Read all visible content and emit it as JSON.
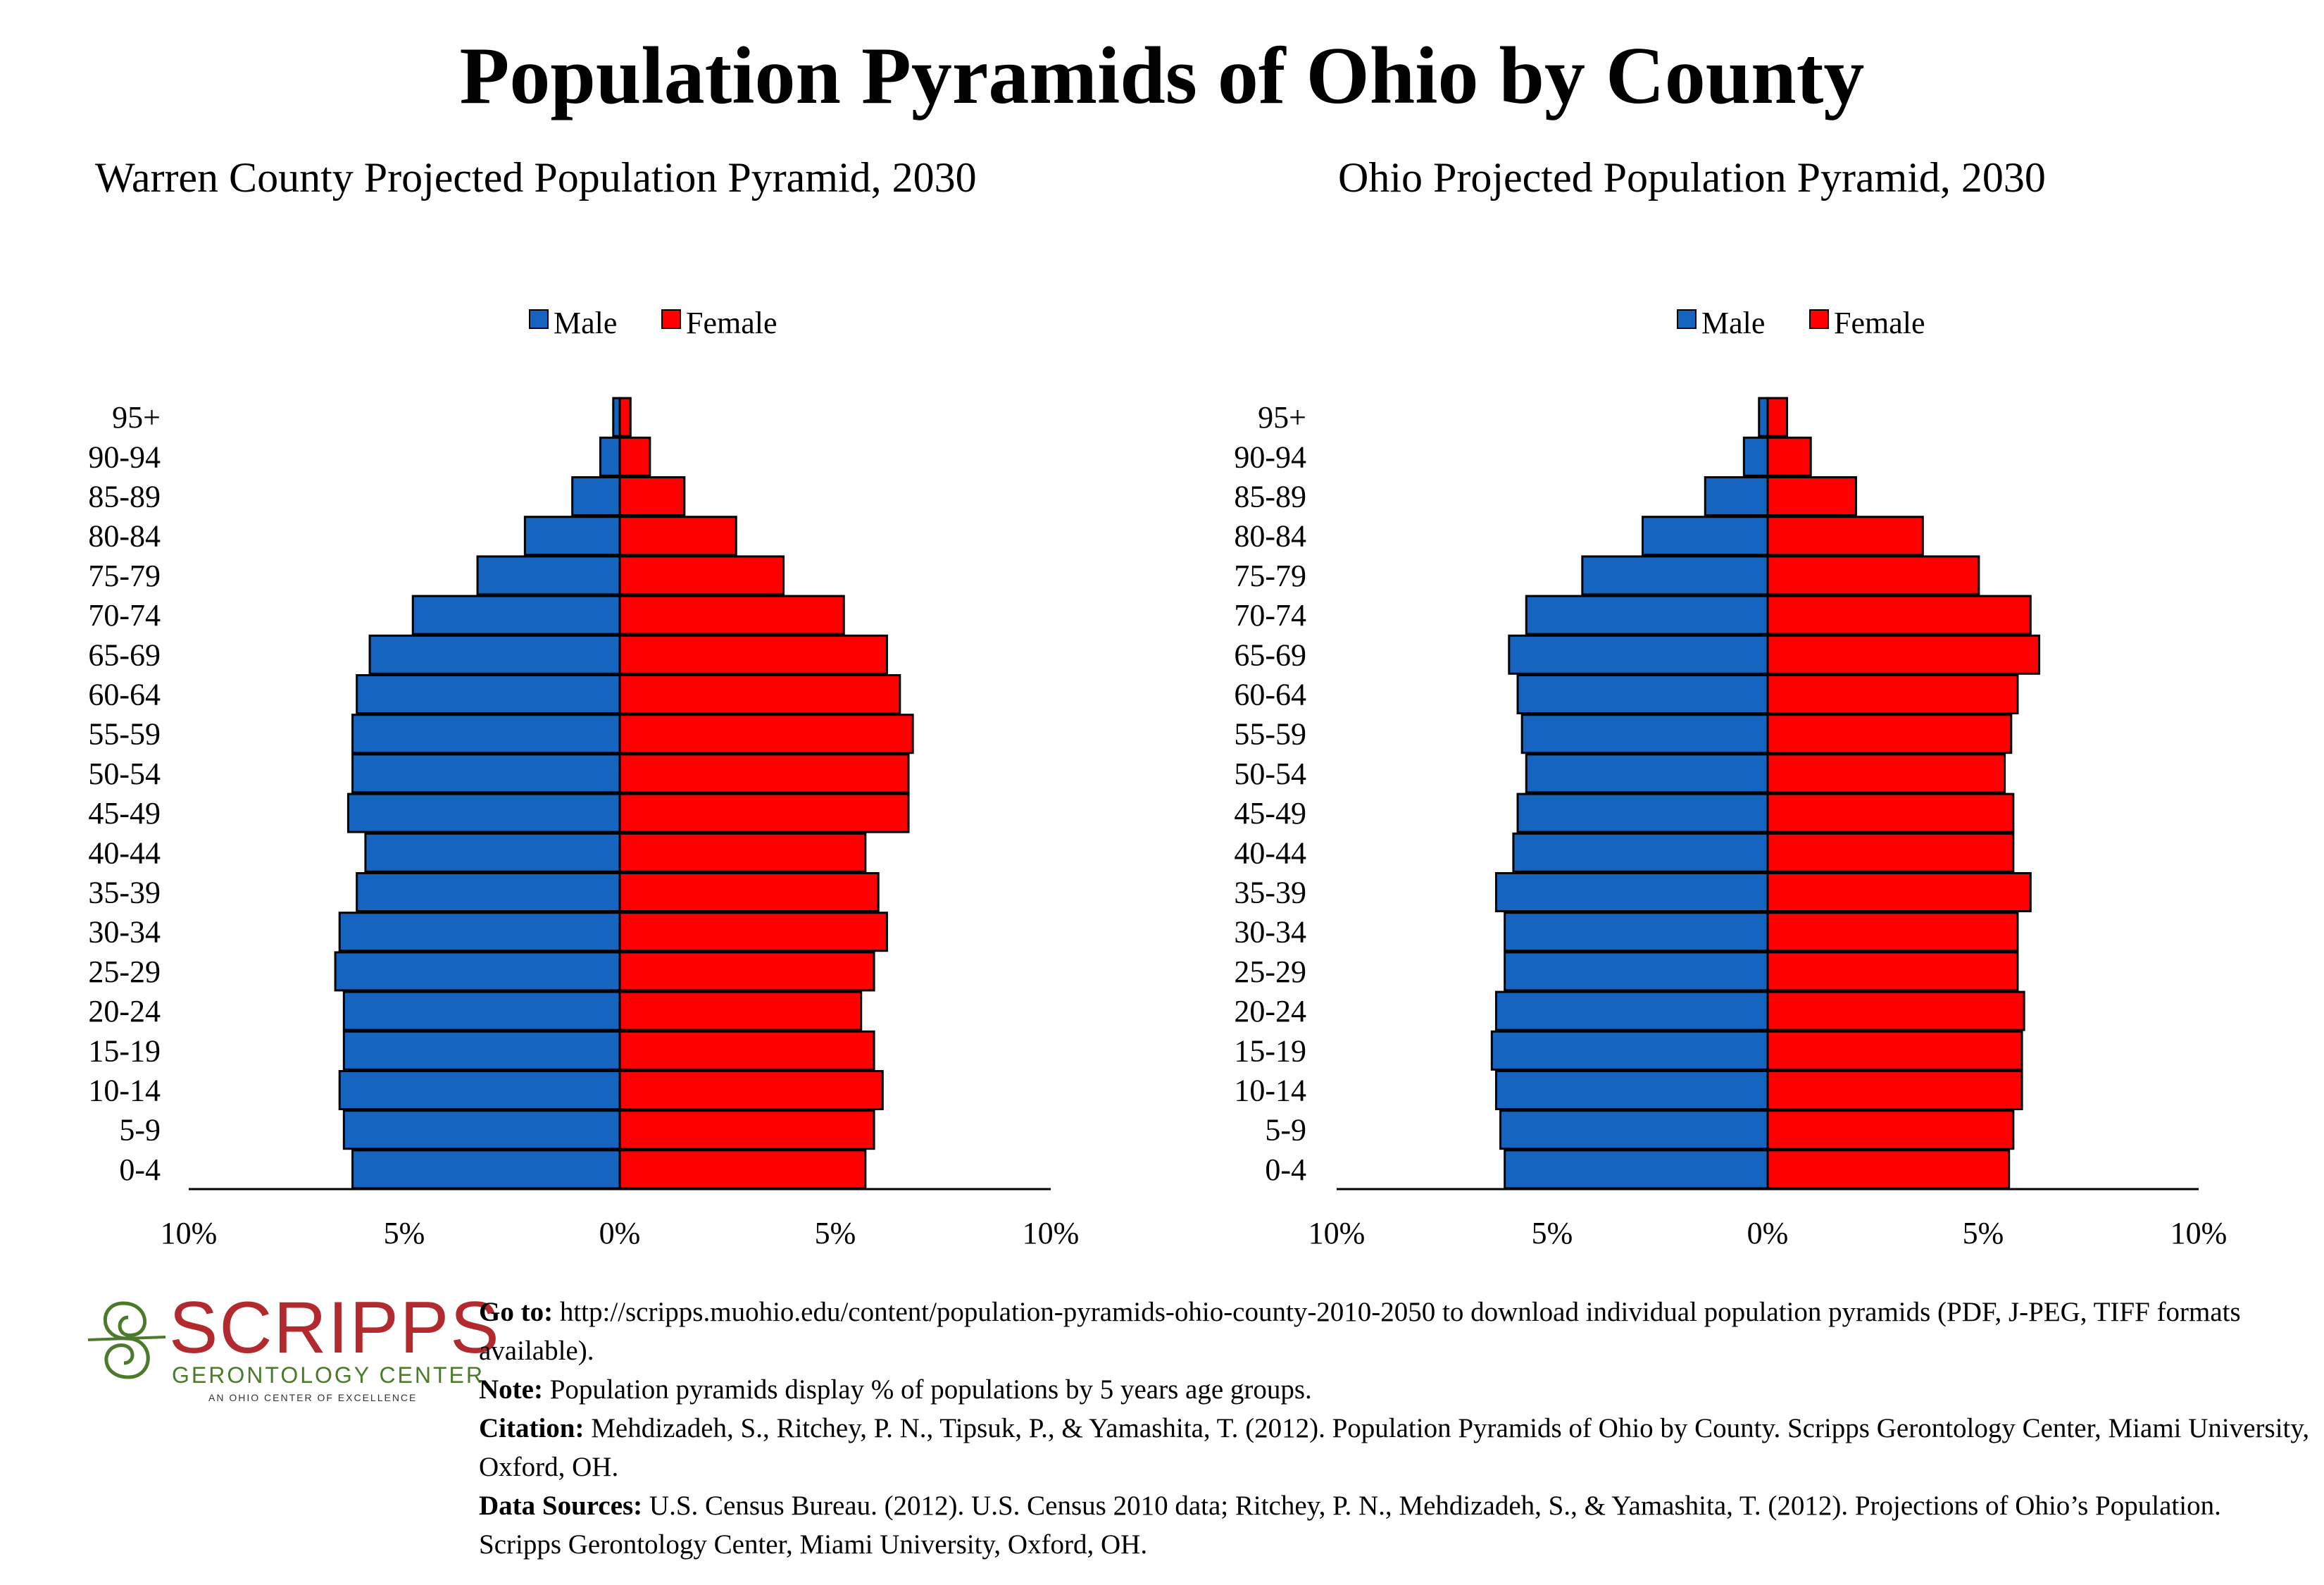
{
  "main_title": "Population Pyramids of Ohio by County",
  "colors": {
    "male": "#1565c0",
    "female": "#ff0000",
    "logo_red": "#b2292e",
    "logo_green": "#4b7a2a"
  },
  "legend": {
    "male": "Male",
    "female": "Female"
  },
  "xaxis_ticks": [
    "10%",
    "5%",
    "0%",
    "5%",
    "10%"
  ],
  "chart_data": [
    {
      "type": "bar",
      "orientation": "horizontal-pyramid",
      "title": "Warren County Projected Population Pyramid, 2030",
      "categories": [
        "0-4",
        "5-9",
        "10-14",
        "15-19",
        "20-24",
        "25-29",
        "30-34",
        "35-39",
        "40-44",
        "45-49",
        "50-54",
        "55-59",
        "60-64",
        "65-69",
        "70-74",
        "75-79",
        "80-84",
        "85-89",
        "90-94",
        "95+"
      ],
      "series": [
        {
          "name": "Male",
          "values": [
            6.2,
            6.4,
            6.5,
            6.4,
            6.4,
            6.6,
            6.5,
            6.1,
            5.9,
            6.3,
            6.2,
            6.2,
            6.1,
            5.8,
            4.8,
            3.3,
            2.2,
            1.1,
            0.45,
            0.15
          ]
        },
        {
          "name": "Female",
          "values": [
            5.7,
            5.9,
            6.1,
            5.9,
            5.6,
            5.9,
            6.2,
            6.0,
            5.7,
            6.7,
            6.7,
            6.8,
            6.5,
            6.2,
            5.2,
            3.8,
            2.7,
            1.5,
            0.7,
            0.25
          ]
        }
      ],
      "xlim": [
        -10,
        10
      ],
      "legend_position": "top-center"
    },
    {
      "type": "bar",
      "orientation": "horizontal-pyramid",
      "title": "Ohio Projected Population Pyramid, 2030",
      "categories": [
        "0-4",
        "5-9",
        "10-14",
        "15-19",
        "20-24",
        "25-29",
        "30-34",
        "35-39",
        "40-44",
        "45-49",
        "50-54",
        "55-59",
        "60-64",
        "65-69",
        "70-74",
        "75-79",
        "80-84",
        "85-89",
        "90-94",
        "95+"
      ],
      "series": [
        {
          "name": "Male",
          "values": [
            6.1,
            6.2,
            6.3,
            6.4,
            6.3,
            6.1,
            6.1,
            6.3,
            5.9,
            5.8,
            5.6,
            5.7,
            5.8,
            6.0,
            5.6,
            4.3,
            2.9,
            1.45,
            0.55,
            0.2
          ]
        },
        {
          "name": "Female",
          "values": [
            5.6,
            5.7,
            5.9,
            5.9,
            5.95,
            5.8,
            5.8,
            6.1,
            5.7,
            5.7,
            5.5,
            5.65,
            5.8,
            6.3,
            6.1,
            4.9,
            3.6,
            2.05,
            1.0,
            0.45
          ]
        }
      ],
      "xlim": [
        -10,
        10
      ],
      "legend_position": "top-center"
    }
  ],
  "logo": {
    "word": "SCRIPPS",
    "sub": "GERONTOLOGY CENTER",
    "tagline": "AN OHIO CENTER OF EXCELLENCE"
  },
  "notes": {
    "goto_label": "Go to:",
    "goto_text": " http://scripps.muohio.edu/content/population-pyramids-ohio-county-2010-2050 to download individual population pyramids (PDF, J-PEG, TIFF formats available).",
    "note_label": "Note:",
    "note_text": " Population pyramids display % of populations by 5 years age groups.",
    "citation_label": "Citation:",
    "citation_text": " Mehdizadeh, S., Ritchey, P. N., Tipsuk, P., & Yamashita, T. (2012). Population Pyramids of Ohio by County. Scripps Gerontology Center, Miami University, Oxford, OH.",
    "sources_label": "Data Sources:",
    "sources_text": " U.S. Census Bureau. (2012). U.S. Census 2010 data; Ritchey, P. N., Mehdizadeh, S., & Yamashita, T. (2012). Projections of Ohio’s Population. Scripps Gerontology Center, Miami University, Oxford, OH."
  }
}
